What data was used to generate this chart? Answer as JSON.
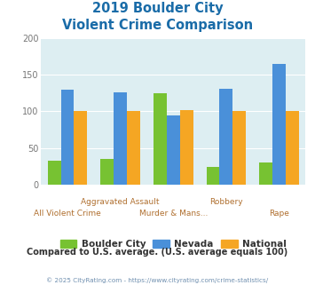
{
  "title_line1": "2019 Boulder City",
  "title_line2": "Violent Crime Comparison",
  "categories": [
    "All Violent Crime",
    "Aggravated Assault",
    "Murder & Mans...",
    "Robbery",
    "Rape"
  ],
  "row1_labels": [
    "",
    "Aggravated Assault",
    "",
    "Robbery",
    ""
  ],
  "row2_labels": [
    "All Violent Crime",
    "",
    "Murder & Mans...",
    "",
    "Rape"
  ],
  "boulder_city": [
    33,
    35,
    125,
    24,
    30
  ],
  "nevada": [
    130,
    126,
    95,
    131,
    165
  ],
  "national": [
    101,
    101,
    102,
    101,
    101
  ],
  "bar_colors": {
    "boulder_city": "#77c232",
    "nevada": "#4a90d9",
    "national": "#f5a623"
  },
  "ylim": [
    0,
    200
  ],
  "yticks": [
    0,
    50,
    100,
    150,
    200
  ],
  "background_color": "#ddeef2",
  "title_color": "#1a6ca8",
  "footer_text": "Compared to U.S. average. (U.S. average equals 100)",
  "footer_color": "#333333",
  "copyright_text": "© 2025 CityRating.com - https://www.cityrating.com/crime-statistics/",
  "copyright_color": "#7090b0",
  "legend_labels": [
    "Boulder City",
    "Nevada",
    "National"
  ],
  "xtick_color": "#b07030"
}
